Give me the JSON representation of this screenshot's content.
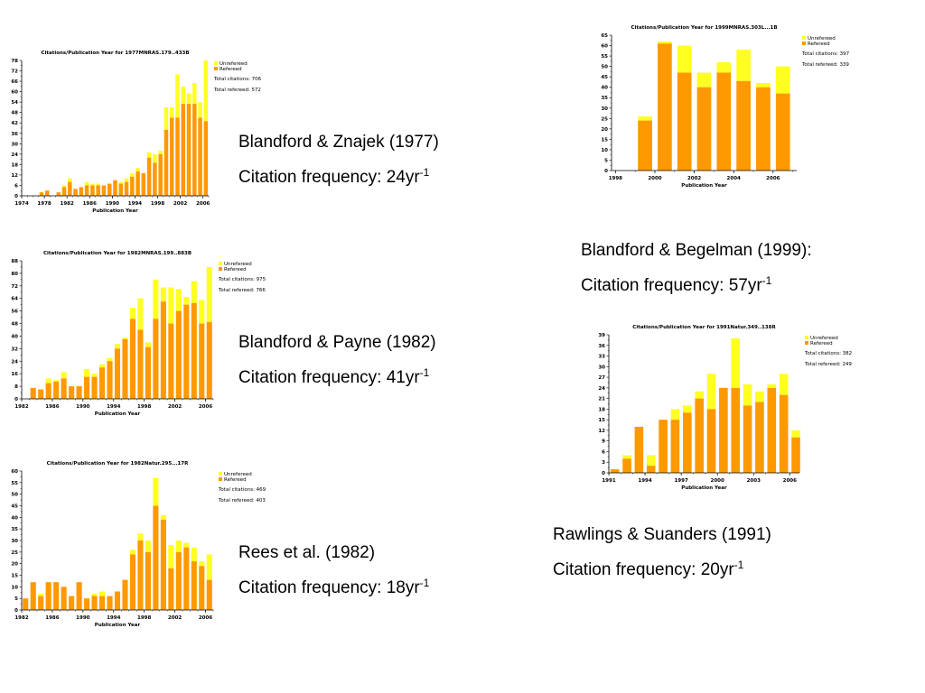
{
  "colors": {
    "unrefereed": "#ffff22",
    "refereed": "#ff9900",
    "axis": "#000000"
  },
  "captions": [
    {
      "id": "c1",
      "title": "Blandford & Znajek (1977)",
      "freq_prefix": "Citation frequency: ",
      "freq_value": "24yr",
      "freq_exp": "-1"
    },
    {
      "id": "c2",
      "title": "Blandford & Begelman (1999):",
      "freq_prefix": "Citation frequency: ",
      "freq_value": "57yr",
      "freq_exp": "-1"
    },
    {
      "id": "c3",
      "title": "Blandford & Payne (1982)",
      "freq_prefix": "Citation frequency: ",
      "freq_value": "41yr",
      "freq_exp": "-1"
    },
    {
      "id": "c4",
      "title": "Rawlings & Suanders (1991)",
      "freq_prefix": "Citation frequency: ",
      "freq_value": "20yr",
      "freq_exp": "-1"
    },
    {
      "id": "c5",
      "title": "Rees et al.  (1982)",
      "freq_prefix": "Citation frequency: ",
      "freq_value": "18yr",
      "freq_exp": "-1"
    }
  ],
  "chart_data": [
    {
      "id": "chart-1977",
      "type": "bar",
      "stacked": true,
      "title": "Citations/Publication Year for 1977MNRAS.179..433B",
      "xlabel": "Publication Year",
      "ylabel": "",
      "xlim": [
        1974,
        2007
      ],
      "ylim": [
        0,
        78
      ],
      "yticks": [
        0,
        6,
        12,
        18,
        24,
        30,
        36,
        42,
        48,
        54,
        60,
        66,
        72,
        78
      ],
      "xticks": [
        1974,
        1978,
        1982,
        1986,
        1990,
        1994,
        1998,
        2002,
        2006
      ],
      "legend": [
        "Unrefereed",
        "Refereed"
      ],
      "legend_position": "right",
      "stats": [
        "Total citations: 706",
        "Total refereed: 572"
      ],
      "years": [
        1977,
        1978,
        1980,
        1981,
        1982,
        1983,
        1984,
        1985,
        1986,
        1987,
        1988,
        1989,
        1990,
        1991,
        1992,
        1993,
        1994,
        1995,
        1996,
        1997,
        1998,
        1999,
        2000,
        2001,
        2002,
        2003,
        2004,
        2005,
        2006
      ],
      "refereed": [
        2,
        3,
        2,
        5,
        8,
        4,
        5,
        6,
        6,
        6,
        6,
        7,
        9,
        7,
        8,
        11,
        14,
        13,
        22,
        19,
        24,
        38,
        45,
        45,
        53,
        53,
        53,
        45,
        43
      ],
      "total": [
        2,
        3,
        2,
        6,
        10,
        4,
        5,
        8,
        7,
        7,
        6,
        7,
        9,
        8,
        10,
        13,
        16,
        13,
        25,
        24,
        26,
        51,
        51,
        70,
        63,
        59,
        65,
        54,
        78
      ]
    },
    {
      "id": "chart-1999",
      "type": "bar",
      "stacked": true,
      "title": "Citations/Publication Year for 1999MNRAS.303L...1B",
      "xlabel": "Publication Year",
      "ylabel": "",
      "xlim": [
        1997.8,
        2007.2
      ],
      "ylim": [
        0,
        65
      ],
      "yticks": [
        0,
        5,
        10,
        15,
        20,
        25,
        30,
        35,
        40,
        45,
        50,
        55,
        60,
        65
      ],
      "xticks": [
        1998,
        2000,
        2002,
        2004,
        2006
      ],
      "legend": [
        "Unrefereed",
        "Refereed"
      ],
      "legend_position": "right",
      "stats": [
        "Total citations: 397",
        "Total refereed: 339"
      ],
      "years": [
        1999,
        2000,
        2001,
        2002,
        2003,
        2004,
        2005,
        2006
      ],
      "refereed": [
        24,
        61,
        47,
        40,
        47,
        43,
        40,
        37
      ],
      "total": [
        26,
        62,
        60,
        47,
        52,
        58,
        42,
        50
      ]
    },
    {
      "id": "chart-1982-mnras",
      "type": "bar",
      "stacked": true,
      "title": "Citations/Publication Year for 1982MNRAS.199..883B",
      "xlabel": "Publication Year",
      "ylabel": "",
      "xlim": [
        1982,
        2007
      ],
      "ylim": [
        0,
        88
      ],
      "yticks": [
        0,
        8,
        16,
        24,
        32,
        40,
        48,
        56,
        64,
        72,
        80,
        88
      ],
      "xticks": [
        1982,
        1986,
        1990,
        1994,
        1998,
        2002,
        2006
      ],
      "legend": [
        "Unrefereed",
        "Refereed"
      ],
      "legend_position": "right",
      "stats": [
        "Total citations: 975",
        "Total refereed: 766"
      ],
      "years": [
        1983,
        1984,
        1985,
        1986,
        1987,
        1988,
        1989,
        1990,
        1991,
        1992,
        1993,
        1994,
        1995,
        1996,
        1997,
        1998,
        1999,
        2000,
        2001,
        2002,
        2003,
        2004,
        2005,
        2006
      ],
      "refereed": [
        7,
        6,
        10,
        11,
        13,
        8,
        8,
        14,
        14,
        20,
        24,
        32,
        38,
        51,
        44,
        33,
        51,
        62,
        48,
        56,
        60,
        61,
        48,
        49
      ],
      "total": [
        7,
        6,
        13,
        12,
        17,
        8,
        8,
        19,
        16,
        22,
        26,
        35,
        39,
        58,
        64,
        36,
        76,
        71,
        71,
        70,
        65,
        75,
        63,
        84
      ]
    },
    {
      "id": "chart-1991",
      "type": "bar",
      "stacked": true,
      "title": "Citations/Publication Year for 1991Natur.349..138R",
      "xlabel": "Publication Year",
      "ylabel": "",
      "xlim": [
        1991,
        2006.8
      ],
      "ylim": [
        0,
        39
      ],
      "yticks": [
        0,
        3,
        6,
        9,
        12,
        15,
        18,
        21,
        24,
        27,
        30,
        33,
        36,
        39
      ],
      "xticks": [
        1991,
        1994,
        1997,
        2000,
        2003,
        2006
      ],
      "legend": [
        "Unrefereed",
        "Refereed"
      ],
      "legend_position": "right",
      "stats": [
        "Total citations: 382",
        "Total refereed: 249"
      ],
      "years": [
        1991,
        1992,
        1993,
        1994,
        1995,
        1996,
        1997,
        1998,
        1999,
        2000,
        2001,
        2002,
        2003,
        2004,
        2005,
        2006
      ],
      "refereed": [
        1,
        4,
        13,
        2,
        15,
        15,
        17,
        21,
        18,
        24,
        24,
        19,
        20,
        24,
        22,
        10
      ],
      "total": [
        1,
        5,
        13,
        5,
        15,
        18,
        19,
        23,
        28,
        24,
        38,
        25,
        23,
        25,
        28,
        12
      ]
    },
    {
      "id": "chart-1982-natur",
      "type": "bar",
      "stacked": true,
      "title": "Citations/Publication Year for 1982Natur.295...17R",
      "xlabel": "Publication Year",
      "ylabel": "",
      "xlim": [
        1982,
        2007
      ],
      "ylim": [
        0,
        60
      ],
      "yticks": [
        0,
        5,
        10,
        15,
        20,
        25,
        30,
        35,
        40,
        45,
        50,
        55,
        60
      ],
      "xticks": [
        1982,
        1986,
        1990,
        1994,
        1998,
        2002,
        2006
      ],
      "legend": [
        "Unrefereed",
        "Refereed"
      ],
      "legend_position": "right",
      "stats": [
        "Total citations: 469",
        "Total refereed: 403"
      ],
      "years": [
        1982,
        1983,
        1984,
        1985,
        1986,
        1987,
        1988,
        1989,
        1990,
        1991,
        1992,
        1993,
        1994,
        1995,
        1996,
        1997,
        1998,
        1999,
        2000,
        2001,
        2002,
        2003,
        2004,
        2005,
        2006
      ],
      "refereed": [
        5,
        12,
        6,
        12,
        12,
        10,
        6,
        12,
        5,
        6,
        6,
        6,
        8,
        13,
        24,
        30,
        25,
        45,
        39,
        18,
        25,
        27,
        21,
        19,
        13
      ],
      "total": [
        5,
        12,
        7,
        12,
        12,
        10,
        6,
        12,
        5,
        7,
        8,
        6,
        8,
        13,
        26,
        33,
        30,
        57,
        41,
        28,
        30,
        29,
        27,
        21,
        24
      ]
    }
  ]
}
